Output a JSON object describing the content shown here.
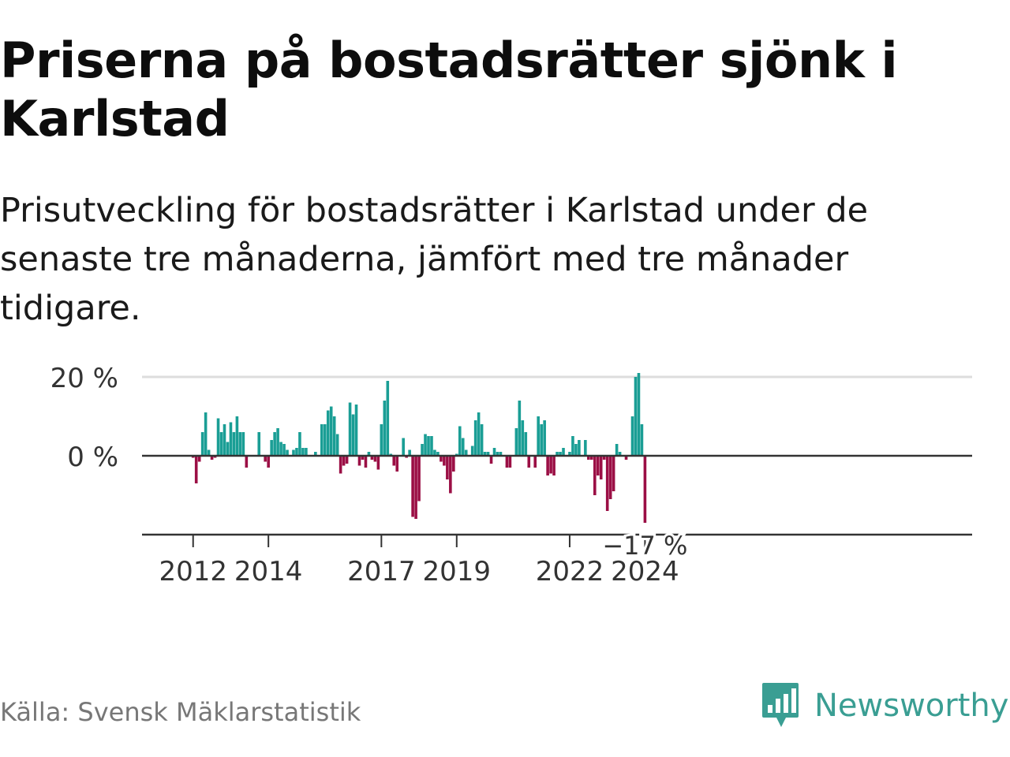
{
  "title": "Priserna på bostadsrätter sjönk i Karlstad",
  "subtitle": "Prisutveckling för bostadsrätter i Karlstad under de senaste tre månaderna, jämfört med tre månader tidigare.",
  "source": "Källa: Svensk Mäklarstatistik",
  "logo": {
    "name": "Newsworthy",
    "icon": "bar-chart-speech-bubble-icon"
  },
  "colors": {
    "positive": "#1a9e95",
    "negative": "#9b0f45",
    "brand": "#3a9e93"
  },
  "chart_data": {
    "type": "bar",
    "title": "Priserna på bostadsrätter sjönk i Karlstad",
    "xlabel": "",
    "ylabel": "",
    "start": "2011-01",
    "frequency": "monthly",
    "ylim": [
      -20,
      20
    ],
    "y_ticks": [
      {
        "value": 20,
        "label": "20 %"
      },
      {
        "value": 0,
        "label": "0 %"
      }
    ],
    "x_ticks": [
      {
        "index": 12,
        "label": "2012"
      },
      {
        "index": 36,
        "label": "2014"
      },
      {
        "index": 72,
        "label": "2017"
      },
      {
        "index": 96,
        "label": "2019"
      },
      {
        "index": 132,
        "label": "2022"
      },
      {
        "index": 156,
        "label": "2024"
      }
    ],
    "last_value_label": "−17 %",
    "values": [
      0,
      0,
      0,
      0,
      0,
      0,
      0,
      0,
      0,
      0,
      0,
      0,
      -0.5,
      -7,
      -1.5,
      6,
      11,
      1.5,
      -1,
      -0.5,
      9.5,
      6,
      8,
      3.5,
      8.5,
      6,
      10,
      6,
      6,
      -3,
      0,
      0,
      0,
      6,
      0,
      -1.5,
      -3,
      4,
      6,
      7,
      3.5,
      3,
      1.5,
      0,
      1.5,
      2,
      6,
      2,
      2,
      0,
      0,
      1,
      0,
      8,
      8,
      11.5,
      12.5,
      10,
      5.5,
      -4.5,
      -2.5,
      -2,
      13.5,
      10.5,
      13,
      -2.5,
      -1,
      -3,
      1,
      -1,
      -1.5,
      -3.5,
      8,
      14,
      19,
      0.5,
      -2.5,
      -4,
      0,
      4.5,
      -0.5,
      1.5,
      -15.5,
      -16,
      -11.5,
      3,
      5.5,
      5,
      5,
      1.5,
      1,
      -1.5,
      -2.5,
      -6,
      -9.5,
      -4,
      0.5,
      7.5,
      4.5,
      1.5,
      0,
      2.5,
      9,
      11,
      8,
      1,
      1,
      -2,
      2,
      1,
      1,
      0,
      -3,
      -3,
      0,
      7,
      14,
      9,
      6,
      -3,
      0,
      -3,
      10,
      8,
      9,
      -5,
      -4.5,
      -5,
      1,
      1,
      2,
      0,
      1,
      5,
      3,
      4,
      0,
      4,
      -1,
      -1,
      -10,
      -5,
      -6,
      -1,
      -14,
      -11,
      -9,
      3,
      1,
      0,
      -1,
      0,
      10,
      20,
      21,
      8,
      -17
    ]
  }
}
